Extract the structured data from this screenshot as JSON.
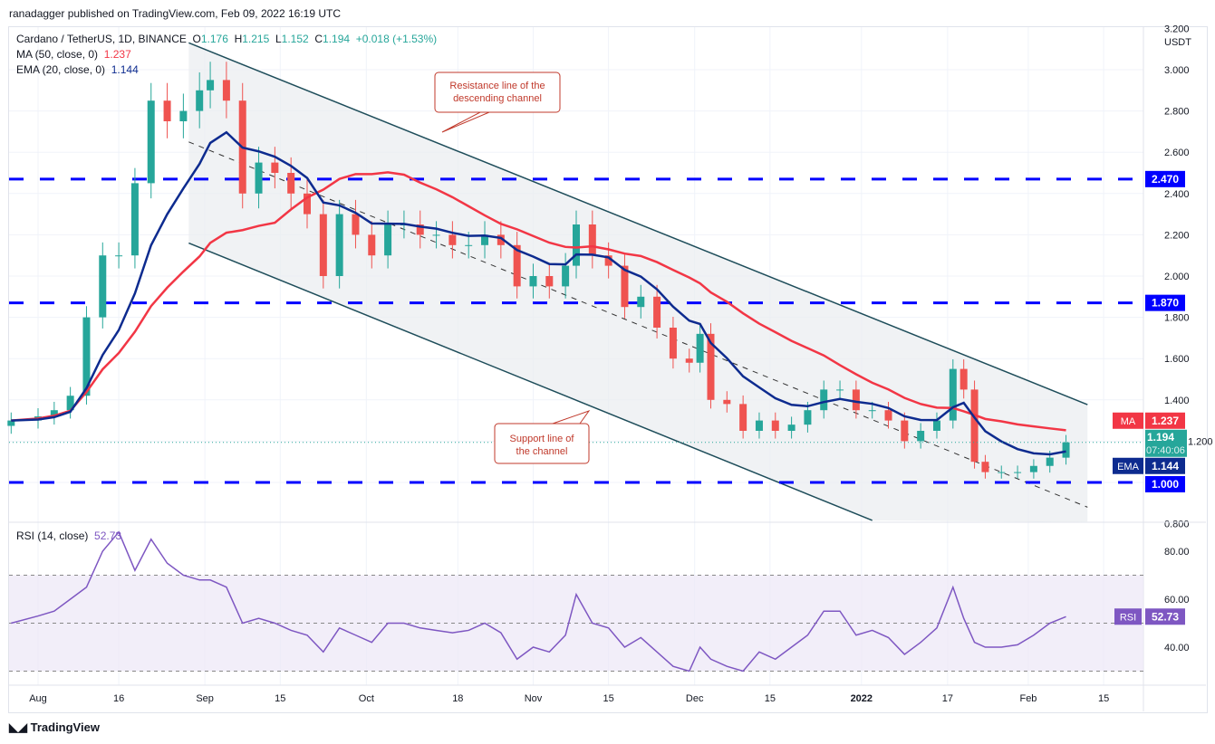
{
  "published": "ranadagger published on TradingView.com, Feb 09, 2022 16:19 UTC",
  "legend": {
    "symbol": "Cardano / TetherUS, 1D, BINANCE",
    "o_label": "O",
    "o": "1.176",
    "h_label": "H",
    "h": "1.215",
    "l_label": "L",
    "l": "1.152",
    "c_label": "C",
    "c": "1.194",
    "change": "+0.018 (+1.53%)",
    "ma_label": "MA (50, close, 0)",
    "ma_value": "1.237",
    "ema_label": "EMA (20, close, 0)",
    "ema_value": "1.144"
  },
  "rsi_label": "RSI (14, close)",
  "rsi_value": "52.73",
  "logo": "TradingView",
  "currency": "USDT",
  "colors": {
    "up": "#26a69a",
    "down": "#ef5350",
    "ma": "#f23645",
    "ema": "#0d2b8f",
    "level": "#0000ff",
    "channel": "#1e4d5a",
    "rsi": "#7e57c2"
  },
  "chart_data": {
    "type": "candlestick",
    "ylim": [
      0.8,
      3.2
    ],
    "yticks": [
      "3.200",
      "3.000",
      "2.800",
      "2.600",
      "2.400",
      "2.200",
      "2.000",
      "1.800",
      "1.600",
      "1.400",
      "1.200",
      "1.000",
      "0.800"
    ],
    "xticks": [
      {
        "d": "2021-08-01",
        "t": "Aug"
      },
      {
        "d": "2021-08-16",
        "t": "16"
      },
      {
        "d": "2021-09-01",
        "t": "Sep"
      },
      {
        "d": "2021-09-15",
        "t": "15"
      },
      {
        "d": "2021-10-01",
        "t": "Oct"
      },
      {
        "d": "2021-10-18",
        "t": "18"
      },
      {
        "d": "2021-11-01",
        "t": "Nov"
      },
      {
        "d": "2021-11-15",
        "t": "15"
      },
      {
        "d": "2021-12-01",
        "t": "Dec"
      },
      {
        "d": "2021-12-15",
        "t": "15"
      },
      {
        "d": "2022-01-01",
        "t": "2022"
      },
      {
        "d": "2022-01-17",
        "t": "17"
      },
      {
        "d": "2022-02-01",
        "t": "Feb"
      },
      {
        "d": "2022-02-15",
        "t": "15"
      }
    ],
    "dates": [
      "2021-07-27",
      "2021-08-01",
      "2021-08-04",
      "2021-08-07",
      "2021-08-10",
      "2021-08-13",
      "2021-08-16",
      "2021-08-19",
      "2021-08-22",
      "2021-08-25",
      "2021-08-28",
      "2021-08-31",
      "2021-09-02",
      "2021-09-05",
      "2021-09-08",
      "2021-09-11",
      "2021-09-14",
      "2021-09-17",
      "2021-09-20",
      "2021-09-23",
      "2021-09-26",
      "2021-09-29",
      "2021-10-02",
      "2021-10-05",
      "2021-10-08",
      "2021-10-11",
      "2021-10-14",
      "2021-10-17",
      "2021-10-20",
      "2021-10-23",
      "2021-10-26",
      "2021-10-29",
      "2021-11-01",
      "2021-11-04",
      "2021-11-07",
      "2021-11-09",
      "2021-11-12",
      "2021-11-15",
      "2021-11-18",
      "2021-11-21",
      "2021-11-24",
      "2021-11-27",
      "2021-11-30",
      "2021-12-02",
      "2021-12-04",
      "2021-12-07",
      "2021-12-10",
      "2021-12-13",
      "2021-12-16",
      "2021-12-19",
      "2021-12-22",
      "2021-12-25",
      "2021-12-28",
      "2021-12-31",
      "2022-01-03",
      "2022-01-06",
      "2022-01-09",
      "2022-01-12",
      "2022-01-15",
      "2022-01-18",
      "2022-01-20",
      "2022-01-22",
      "2022-01-24",
      "2022-01-27",
      "2022-01-30",
      "2022-02-02",
      "2022-02-05",
      "2022-02-08"
    ],
    "close": [
      1.3,
      1.32,
      1.35,
      1.42,
      1.8,
      2.1,
      2.1,
      2.45,
      2.85,
      2.75,
      2.8,
      2.9,
      2.95,
      2.85,
      2.4,
      2.55,
      2.5,
      2.4,
      2.3,
      2.0,
      2.3,
      2.2,
      2.1,
      2.25,
      2.25,
      2.2,
      2.2,
      2.15,
      2.15,
      2.2,
      2.15,
      1.95,
      2.0,
      1.95,
      2.05,
      2.25,
      2.1,
      2.05,
      1.85,
      1.9,
      1.75,
      1.6,
      1.58,
      1.72,
      1.4,
      1.38,
      1.25,
      1.3,
      1.25,
      1.28,
      1.35,
      1.45,
      1.45,
      1.35,
      1.35,
      1.3,
      1.2,
      1.25,
      1.3,
      1.55,
      1.45,
      1.1,
      1.05,
      1.05,
      1.05,
      1.08,
      1.12,
      1.194
    ],
    "rsi": [
      50,
      53,
      55,
      60,
      65,
      80,
      88,
      72,
      85,
      75,
      70,
      68,
      68,
      65,
      50,
      52,
      50,
      47,
      45,
      38,
      48,
      45,
      42,
      50,
      50,
      48,
      47,
      46,
      47,
      50,
      46,
      35,
      40,
      38,
      45,
      62,
      50,
      48,
      40,
      44,
      38,
      32,
      30,
      40,
      35,
      32,
      30,
      38,
      35,
      40,
      45,
      55,
      55,
      45,
      47,
      44,
      37,
      42,
      48,
      65,
      52,
      42,
      40,
      40,
      41,
      45,
      50,
      52.73
    ],
    "rsi_ticks": [
      "80.00",
      "60.00",
      "40.00"
    ],
    "rsi_band": [
      30,
      70
    ],
    "levels": [
      {
        "price": 2.47,
        "label": "2.470"
      },
      {
        "price": 1.87,
        "label": "1.870"
      },
      {
        "price": 1.0,
        "label": "1.000"
      }
    ],
    "trendlines": {
      "resistance": [
        [
          "2021-08-29",
          3.13
        ],
        [
          "2022-02-12",
          1.377
        ]
      ],
      "support": [
        [
          "2021-08-29",
          2.16
        ],
        [
          "2022-01-03",
          0.816
        ]
      ],
      "mid": [
        [
          "2021-08-29",
          2.65
        ],
        [
          "2022-02-12",
          0.88
        ]
      ]
    },
    "price_labels": {
      "ma_tag": "MA",
      "ma": "1.237",
      "last": "1.194",
      "countdown": "07:40:06",
      "ema_tag": "EMA",
      "ema": "1.144",
      "level": "1.000"
    },
    "annotations": [
      {
        "text": [
          "Resistance line of the",
          "descending channel"
        ]
      },
      {
        "text": [
          "Support line of",
          "the channel"
        ]
      }
    ]
  }
}
